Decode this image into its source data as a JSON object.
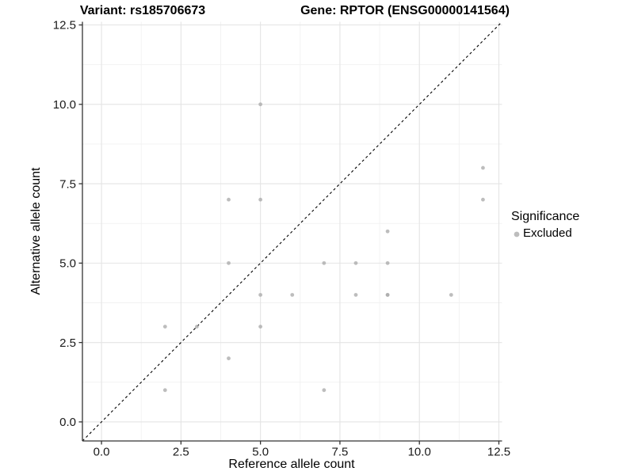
{
  "chart_data": {
    "type": "scatter",
    "title_left": "Variant: rs185706673",
    "title_right": "Gene: RPTOR (ENSG00000141564)",
    "xlabel": "Reference allele count",
    "ylabel": "Alternative allele count",
    "axis_range": [
      -0.6,
      12.6
    ],
    "ticks": [
      {
        "value": 0,
        "label": "0.0"
      },
      {
        "value": 2.5,
        "label": "2.5"
      },
      {
        "value": 5,
        "label": "5.0"
      },
      {
        "value": 7.5,
        "label": "7.5"
      },
      {
        "value": 10,
        "label": "10.0"
      },
      {
        "value": 12.5,
        "label": "12.5"
      }
    ],
    "minor_ticks": [
      1.25,
      3.75,
      6.25,
      8.75,
      11.25
    ],
    "grid": {
      "on": true,
      "major_color": "#e4e4e4",
      "minor_color": "#f1f1f1"
    },
    "identity_line": {
      "slope": 1,
      "intercept": 0,
      "style": "dashed",
      "color": "#000000"
    },
    "series": [
      {
        "name": "Excluded",
        "point_color": "#aaaaaa",
        "point_opacity": 0.78,
        "points": [
          [
            2,
            1
          ],
          [
            2,
            3
          ],
          [
            3,
            3
          ],
          [
            4,
            2
          ],
          [
            4,
            5
          ],
          [
            4,
            7
          ],
          [
            5,
            3
          ],
          [
            5,
            4
          ],
          [
            5,
            7
          ],
          [
            5,
            10
          ],
          [
            6,
            4
          ],
          [
            7,
            1
          ],
          [
            7,
            5
          ],
          [
            8,
            4
          ],
          [
            8,
            5
          ],
          [
            9,
            4
          ],
          [
            9,
            4
          ],
          [
            9,
            5
          ],
          [
            9,
            6
          ],
          [
            11,
            4
          ],
          [
            12,
            7
          ],
          [
            12,
            8
          ]
        ]
      }
    ],
    "legend": {
      "title": "Significance",
      "position": "right",
      "entries": [
        {
          "label": "Excluded",
          "color": "#bdbdbd"
        }
      ]
    }
  },
  "colors": {
    "axis_line": "#333333",
    "tick_mark": "#333333",
    "tick_text": "#1a1a1a",
    "background": "#ffffff"
  }
}
